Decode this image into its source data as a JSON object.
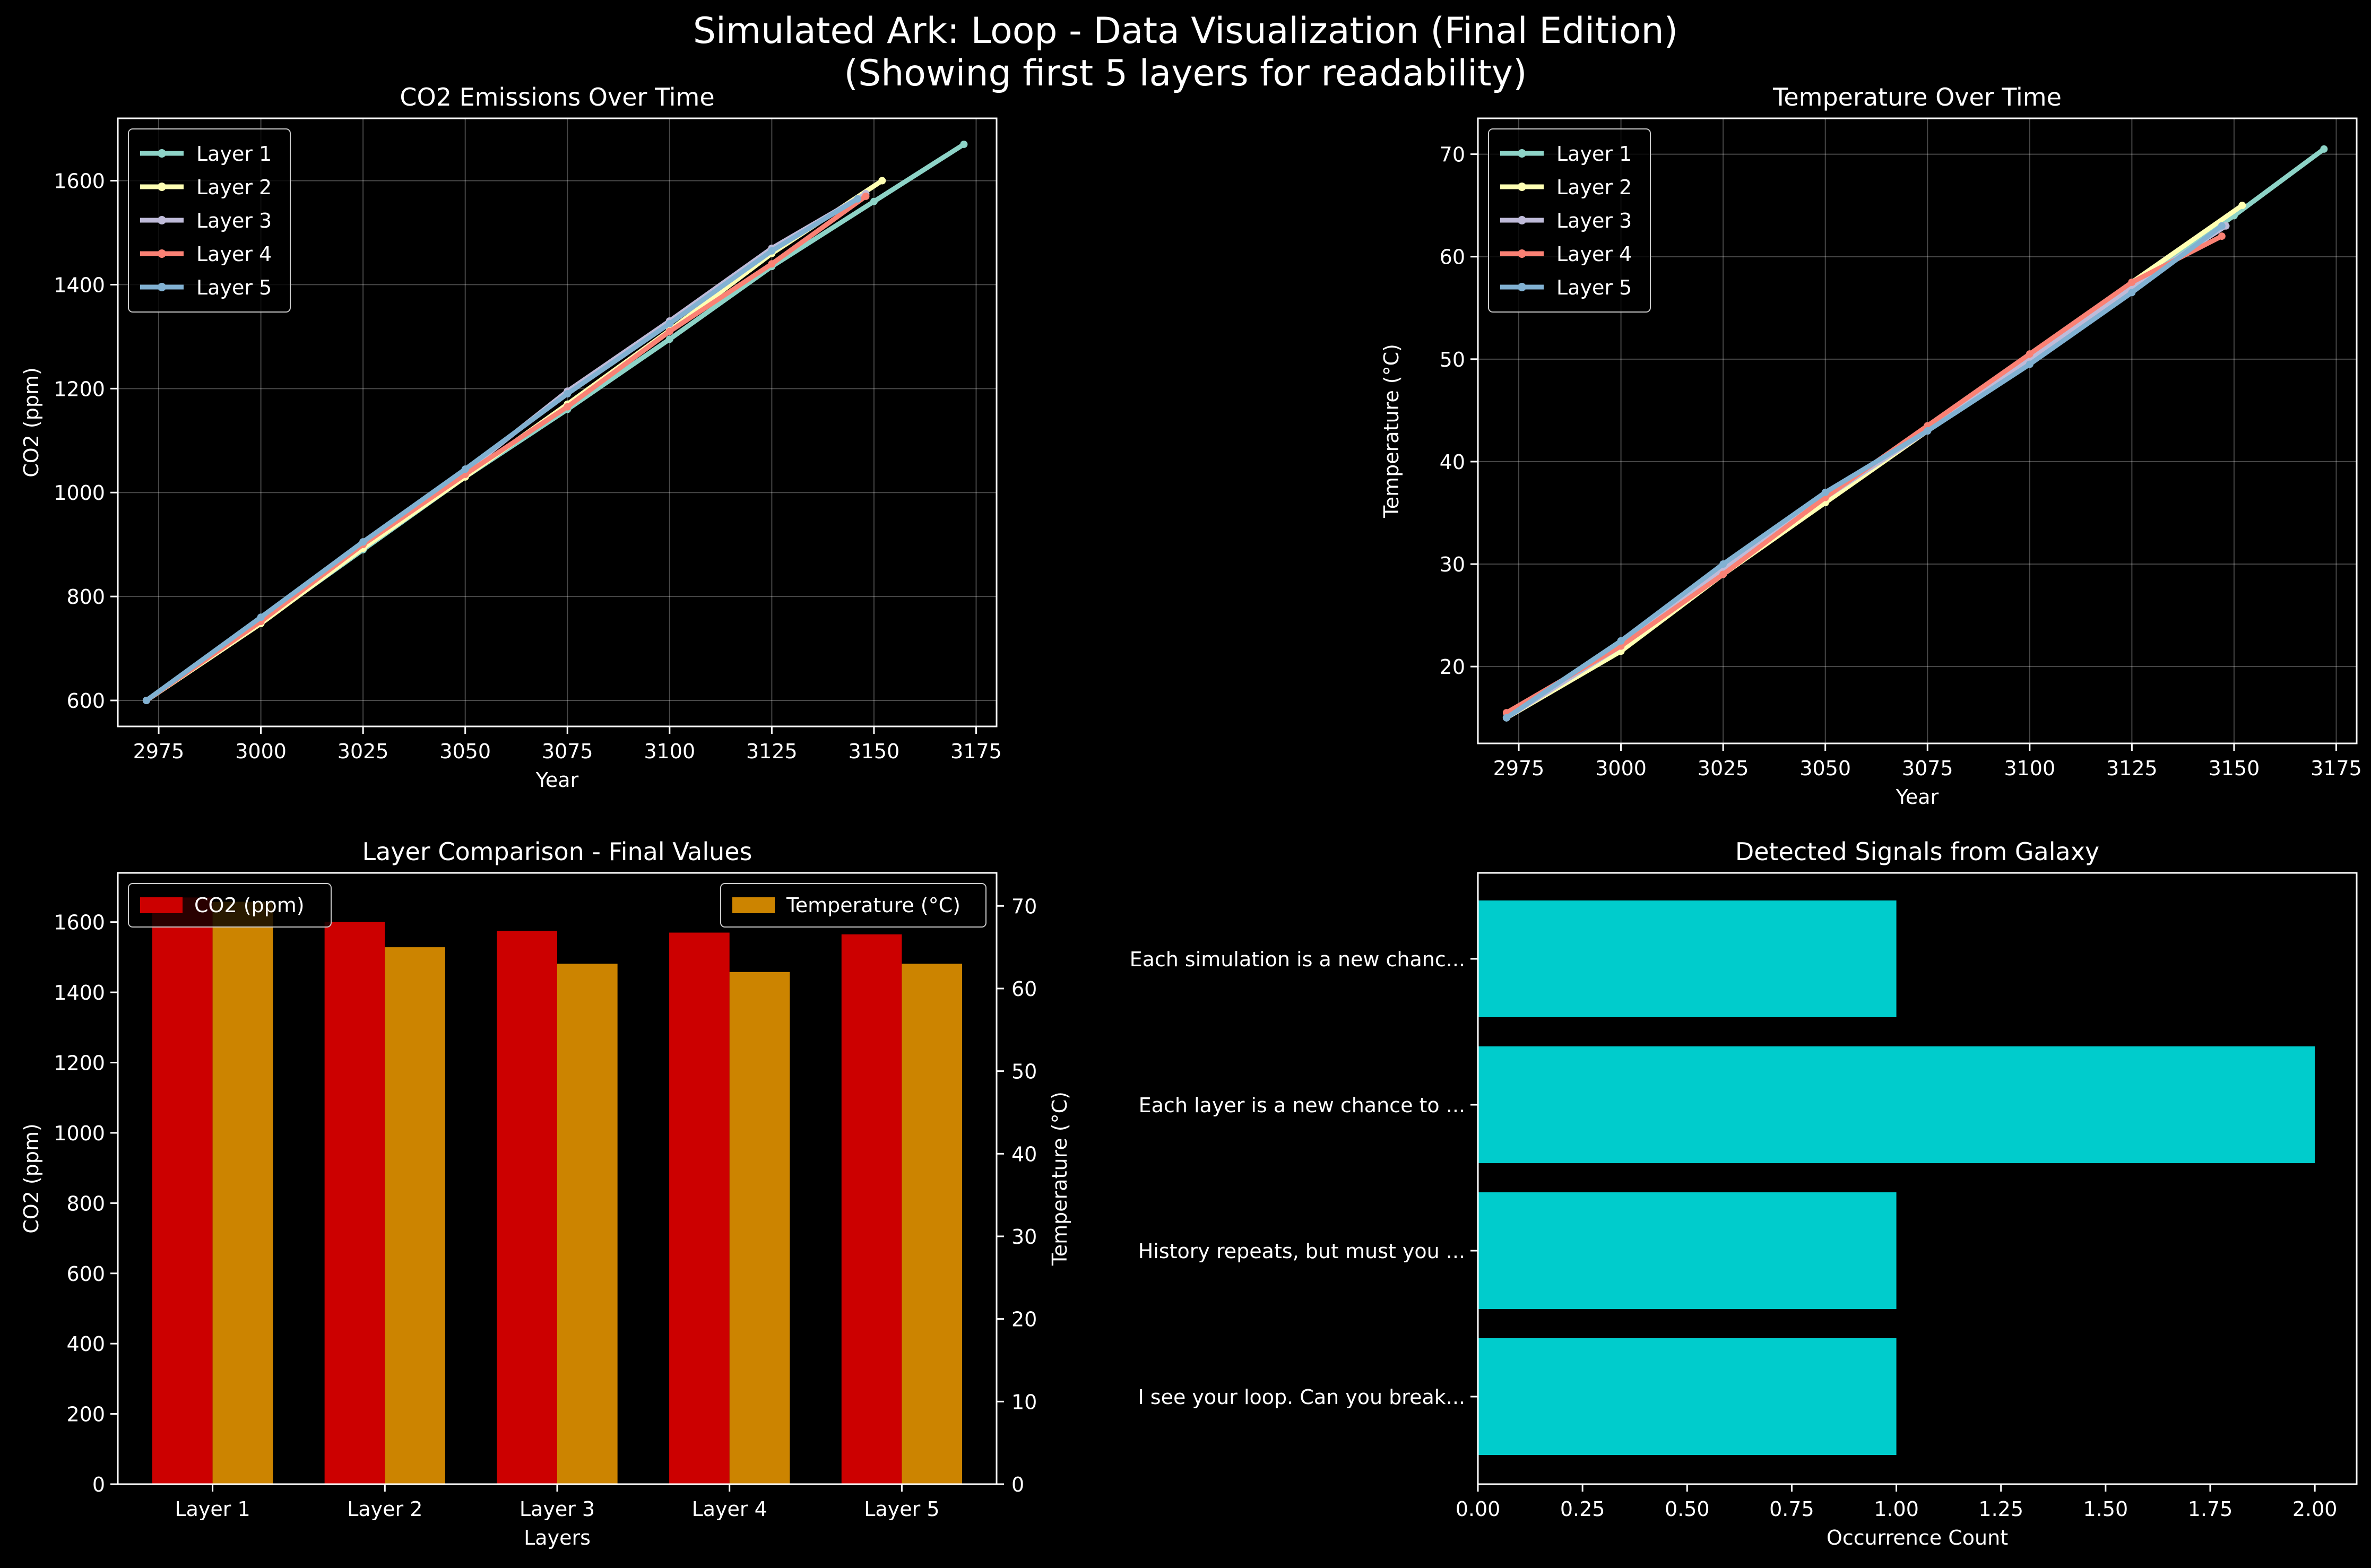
{
  "figure": {
    "title": "Simulated Ark: Loop - Data Visualization (Final Edition)",
    "subtitle": "(Showing first 5 layers for readability)",
    "background": "#000000"
  },
  "chart_data": [
    {
      "id": "co2",
      "type": "line",
      "title": "CO2 Emissions Over Time",
      "xlabel": "Year",
      "ylabel": "CO2 (ppm)",
      "xlim": [
        2965,
        3180
      ],
      "ylim": [
        550,
        1720
      ],
      "xticks": [
        2975,
        3000,
        3025,
        3050,
        3075,
        3100,
        3125,
        3150,
        3175
      ],
      "yticks": [
        600,
        800,
        1000,
        1200,
        1400,
        1600
      ],
      "grid": true,
      "legend": "upper-left",
      "series": [
        {
          "name": "Layer 1",
          "color": "#8dd3c7",
          "points": [
            [
              2972,
              600
            ],
            [
              3000,
              750
            ],
            [
              3025,
              890
            ],
            [
              3050,
              1030
            ],
            [
              3075,
              1160
            ],
            [
              3100,
              1295
            ],
            [
              3125,
              1435
            ],
            [
              3150,
              1560
            ],
            [
              3172,
              1670
            ]
          ]
        },
        {
          "name": "Layer 2",
          "color": "#feffb3",
          "points": [
            [
              2972,
              600
            ],
            [
              3000,
              748
            ],
            [
              3025,
              893
            ],
            [
              3050,
              1030
            ],
            [
              3075,
              1170
            ],
            [
              3100,
              1312
            ],
            [
              3125,
              1460
            ],
            [
              3152,
              1600
            ]
          ]
        },
        {
          "name": "Layer 3",
          "color": "#bfbbd9",
          "points": [
            [
              2972,
              600
            ],
            [
              3000,
              755
            ],
            [
              3025,
              905
            ],
            [
              3050,
              1040
            ],
            [
              3075,
              1195
            ],
            [
              3100,
              1330
            ],
            [
              3125,
              1470
            ],
            [
              3148,
              1575
            ]
          ]
        },
        {
          "name": "Layer 4",
          "color": "#fa8174",
          "points": [
            [
              2972,
              600
            ],
            [
              3000,
              752
            ],
            [
              3025,
              900
            ],
            [
              3050,
              1035
            ],
            [
              3075,
              1165
            ],
            [
              3100,
              1310
            ],
            [
              3125,
              1440
            ],
            [
              3148,
              1570
            ]
          ]
        },
        {
          "name": "Layer 5",
          "color": "#81b1d2",
          "points": [
            [
              2972,
              600
            ],
            [
              3000,
              760
            ],
            [
              3025,
              905
            ],
            [
              3050,
              1045
            ],
            [
              3075,
              1190
            ],
            [
              3100,
              1325
            ],
            [
              3125,
              1465
            ],
            [
              3146,
              1565
            ]
          ]
        }
      ]
    },
    {
      "id": "temperature",
      "type": "line",
      "title": "Temperature Over Time",
      "xlabel": "Year",
      "ylabel": "Temperature (°C)",
      "xlim": [
        2965,
        3180
      ],
      "ylim": [
        12.5,
        73.5
      ],
      "xticks": [
        2975,
        3000,
        3025,
        3050,
        3075,
        3100,
        3125,
        3150,
        3175
      ],
      "yticks": [
        20,
        30,
        40,
        50,
        60,
        70
      ],
      "grid": true,
      "legend": "upper-left",
      "series": [
        {
          "name": "Layer 1",
          "color": "#8dd3c7",
          "points": [
            [
              2972,
              15
            ],
            [
              3000,
              22.5
            ],
            [
              3025,
              29.5
            ],
            [
              3050,
              36.5
            ],
            [
              3075,
              43
            ],
            [
              3100,
              49.5
            ],
            [
              3125,
              57
            ],
            [
              3150,
              64
            ],
            [
              3172,
              70.5
            ]
          ]
        },
        {
          "name": "Layer 2",
          "color": "#feffb3",
          "points": [
            [
              2972,
              15
            ],
            [
              3000,
              21.5
            ],
            [
              3025,
              29
            ],
            [
              3050,
              36
            ],
            [
              3075,
              43
            ],
            [
              3100,
              50
            ],
            [
              3125,
              57.5
            ],
            [
              3152,
              65
            ]
          ]
        },
        {
          "name": "Layer 3",
          "color": "#bfbbd9",
          "points": [
            [
              2972,
              15
            ],
            [
              3000,
              22
            ],
            [
              3025,
              29.5
            ],
            [
              3050,
              36.5
            ],
            [
              3075,
              43
            ],
            [
              3100,
              50
            ],
            [
              3125,
              57
            ],
            [
              3148,
              63
            ]
          ]
        },
        {
          "name": "Layer 4",
          "color": "#fa8174",
          "points": [
            [
              2972,
              15.5
            ],
            [
              3000,
              22
            ],
            [
              3025,
              29
            ],
            [
              3050,
              36.5
            ],
            [
              3075,
              43.5
            ],
            [
              3100,
              50.5
            ],
            [
              3125,
              57.5
            ],
            [
              3147,
              62
            ]
          ]
        },
        {
          "name": "Layer 5",
          "color": "#81b1d2",
          "points": [
            [
              2972,
              15
            ],
            [
              3000,
              22.5
            ],
            [
              3025,
              30
            ],
            [
              3050,
              37
            ],
            [
              3075,
              43
            ],
            [
              3100,
              49.5
            ],
            [
              3125,
              56.5
            ],
            [
              3147,
              63
            ]
          ]
        }
      ]
    },
    {
      "id": "comparison",
      "type": "bar",
      "title": "Layer Comparison - Final Values",
      "xlabel": "Layers",
      "ylabel": "CO2 (ppm)",
      "ylabel_right": "Temperature (°C)",
      "categories": [
        "Layer 1",
        "Layer 2",
        "Layer 3",
        "Layer 4",
        "Layer 5"
      ],
      "ylim": [
        0,
        1740
      ],
      "ylim_right": [
        0,
        74
      ],
      "yticks": [
        0,
        200,
        400,
        600,
        800,
        1000,
        1200,
        1400,
        1600
      ],
      "yticks_right": [
        0,
        10,
        20,
        30,
        40,
        50,
        60,
        70
      ],
      "series": [
        {
          "name": "CO2 (ppm)",
          "axis": "left",
          "color": "#cc0000",
          "values": [
            1670,
            1600,
            1575,
            1570,
            1565
          ]
        },
        {
          "name": "Temperature (°C)",
          "axis": "right",
          "color": "#cc8400",
          "values": [
            70.5,
            65,
            63,
            62,
            63
          ]
        }
      ],
      "legend": [
        "upper-left",
        "upper-right"
      ]
    },
    {
      "id": "signals",
      "type": "bar",
      "orientation": "horizontal",
      "title": "Detected Signals from Galaxy",
      "xlabel": "Occurrence Count",
      "ylabel": "",
      "categories": [
        "Each simulation is a new chanc...",
        "Each layer is a new chance to ...",
        "History repeats, but must you ...",
        "I see your loop. Can you break..."
      ],
      "values": [
        1,
        2,
        1,
        1
      ],
      "color": "#00cccc",
      "xlim": [
        0,
        2.1
      ],
      "xticks": [
        "0.00",
        "0.25",
        "0.50",
        "0.75",
        "1.00",
        "1.25",
        "1.50",
        "1.75",
        "2.00"
      ]
    }
  ]
}
